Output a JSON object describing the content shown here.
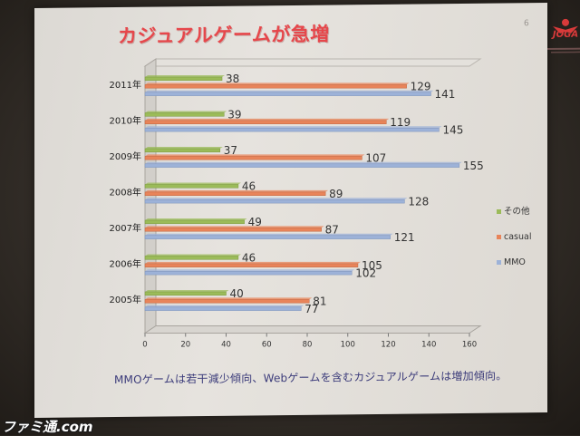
{
  "slide": {
    "title": "カジュアルゲームが急増",
    "number": "6",
    "logo_text": "JOGA",
    "caption": "MMOゲームは若干減少傾向、Webゲームを含むカジュアルゲームは増加傾向。"
  },
  "watermark": "ファミ通.com",
  "colors": {
    "other": "#9bbb59",
    "casual": "#e8845a",
    "mmo": "#9db2d8",
    "title": "#e6474b"
  },
  "chart_data": {
    "type": "bar",
    "orientation": "horizontal",
    "categories": [
      "2011年",
      "2010年",
      "2009年",
      "2008年",
      "2007年",
      "2006年",
      "2005年"
    ],
    "series": [
      {
        "name": "その他",
        "values": [
          38,
          39,
          37,
          46,
          49,
          46,
          40
        ]
      },
      {
        "name": "casual",
        "values": [
          129,
          119,
          107,
          89,
          87,
          105,
          81
        ]
      },
      {
        "name": "MMO",
        "values": [
          141,
          145,
          155,
          128,
          121,
          102,
          77
        ]
      }
    ],
    "xticks": [
      "0",
      "20",
      "40",
      "60",
      "80",
      "100",
      "120",
      "140",
      "160"
    ],
    "xlim": [
      0,
      160
    ],
    "legend_position": "right",
    "grid": false
  }
}
